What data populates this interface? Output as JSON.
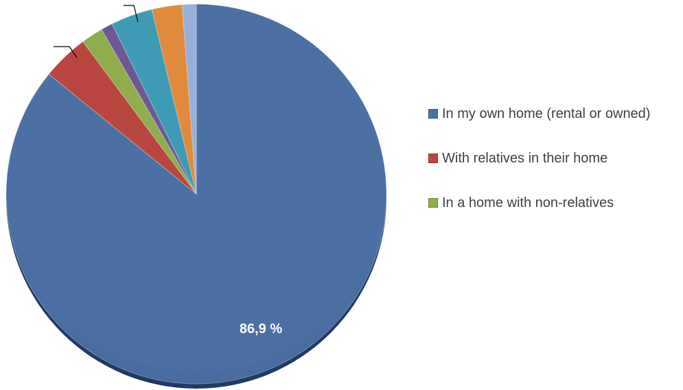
{
  "chart_data": {
    "type": "pie",
    "slices": [
      {
        "label": "In my own home (rental or owned)",
        "value": 86.9,
        "color": "#4a70a4",
        "value_label": "86,9 %"
      },
      {
        "label": "With relatives in their home",
        "value": 4.0,
        "color": "#b9473f",
        "value_label": ""
      },
      {
        "label": "In a home with non-relatives",
        "value": 1.9,
        "color": "#8fad4d",
        "value_label": ""
      },
      {
        "label": "",
        "value": 1.0,
        "color": "#6e5894",
        "value_label": ""
      },
      {
        "label": "",
        "value": 3.6,
        "color": "#3f9bb5",
        "value_label": ""
      },
      {
        "label": "",
        "value": 2.6,
        "color": "#e08a3c",
        "value_label": ""
      },
      {
        "label": "",
        "value": 1.2,
        "color": "#97b0d8",
        "value_label": ""
      }
    ],
    "legend": {
      "placement": "right",
      "entries": [
        {
          "label": "In my own home (rental or owned)",
          "color": "#4a70a4"
        },
        {
          "label": "With relatives in their home",
          "color": "#b9473f"
        },
        {
          "label": "In a home with non-relatives",
          "color": "#8fad4d"
        }
      ]
    },
    "title": ""
  }
}
